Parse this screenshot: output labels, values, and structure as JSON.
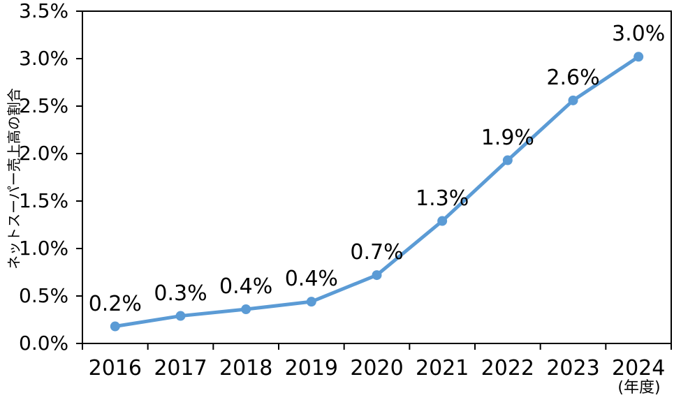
{
  "chart_data": {
    "type": "line",
    "title": "",
    "categories": [
      "2016",
      "2017",
      "2018",
      "2019",
      "2020",
      "2021",
      "2022",
      "2023",
      "2024"
    ],
    "values": [
      0.18,
      0.29,
      0.36,
      0.44,
      0.72,
      1.29,
      1.93,
      2.56,
      3.02
    ],
    "point_labels": [
      "0.2%",
      "0.3%",
      "0.4%",
      "0.4%",
      "0.7%",
      "1.3%",
      "1.9%",
      "2.6%",
      "3.0%"
    ],
    "ylabel": "ネットスーパー売上高の割合",
    "xlabel_unit": "(年度)",
    "ylim": [
      0,
      3.5
    ],
    "ytick_step": 0.5,
    "ytick_labels": [
      "0.0%",
      "0.5%",
      "1.0%",
      "1.5%",
      "2.0%",
      "2.5%",
      "3.0%",
      "3.5%"
    ],
    "grid": false,
    "legend": null,
    "colors": {
      "line": "#5B9BD5",
      "marker": "#5B9BD5",
      "axis": "#000000",
      "text": "#000000",
      "background": "#FFFFFF"
    }
  }
}
